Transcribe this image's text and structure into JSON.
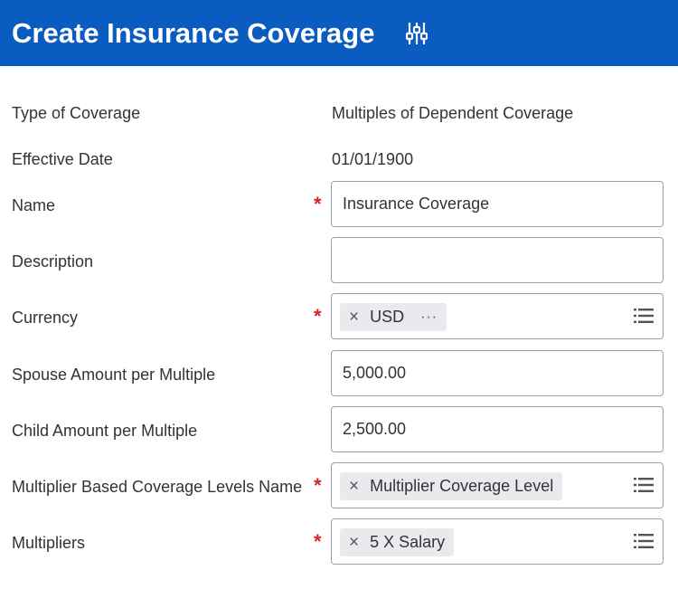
{
  "header": {
    "title": "Create Insurance Coverage",
    "settings_icon": "related-actions-icon"
  },
  "colors": {
    "header_bg": "#0b5cc0",
    "required": "#d6262b",
    "pill_bg": "#e8eaed"
  },
  "fields": {
    "type_of_coverage": {
      "label": "Type of Coverage",
      "value": "Multiples of Dependent Coverage"
    },
    "effective_date": {
      "label": "Effective Date",
      "value": "01/01/1900"
    },
    "name": {
      "label": "Name",
      "value": "Insurance Coverage",
      "required": "*"
    },
    "description": {
      "label": "Description",
      "value": ""
    },
    "currency": {
      "label": "Currency",
      "required": "*",
      "selected": "USD",
      "remove": "×",
      "more": "···"
    },
    "spouse_amount": {
      "label": "Spouse Amount per Multiple",
      "value": "5,000.00"
    },
    "child_amount": {
      "label": "Child Amount per Multiple",
      "value": "2,500.00"
    },
    "coverage_levels_name": {
      "label": "Multiplier Based Coverage Levels Name",
      "required": "*",
      "selected": "Multiplier Coverage Level",
      "remove": "×"
    },
    "multipliers": {
      "label": "Multipliers",
      "required": "*",
      "selected": "5 X Salary",
      "remove": "×"
    }
  }
}
